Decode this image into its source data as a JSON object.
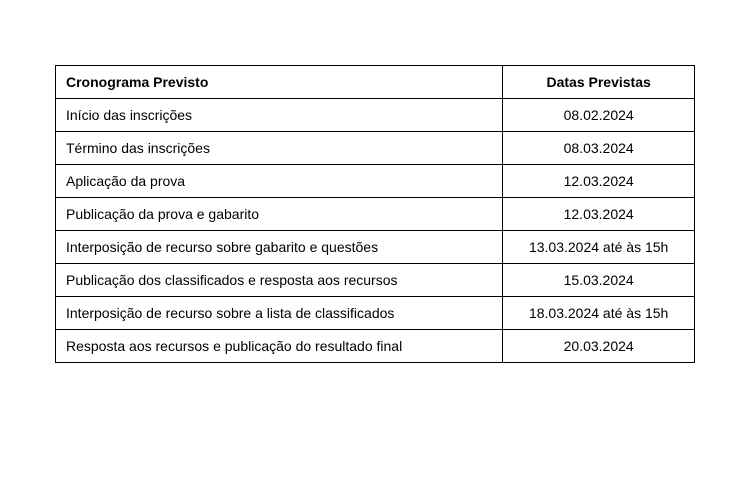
{
  "table": {
    "type": "table",
    "background_color": "#ffffff",
    "border_color": "#000000",
    "text_color": "#000000",
    "font_family": "Arial",
    "font_size": 14,
    "header_font_weight": "bold",
    "columns": [
      {
        "label": "Cronograma Previsto",
        "align": "left",
        "width_percent": 70
      },
      {
        "label": "Datas Previstas",
        "align": "center",
        "width_percent": 30
      }
    ],
    "rows": [
      {
        "event": "Início das inscrições",
        "date": "08.02.2024"
      },
      {
        "event": "Término das inscrições",
        "date": "08.03.2024"
      },
      {
        "event": "Aplicação da prova",
        "date": "12.03.2024"
      },
      {
        "event": "Publicação da prova e gabarito",
        "date": "12.03.2024"
      },
      {
        "event": "Interposição de recurso sobre gabarito e questões",
        "date": "13.03.2024 até às 15h"
      },
      {
        "event": "Publicação dos classificados e resposta aos recursos",
        "date": "15.03.2024"
      },
      {
        "event": "Interposição de recurso sobre a lista de classificados",
        "date": "18.03.2024 até às 15h"
      },
      {
        "event": "Resposta aos recursos e publicação do resultado final",
        "date": "20.03.2024"
      }
    ]
  }
}
